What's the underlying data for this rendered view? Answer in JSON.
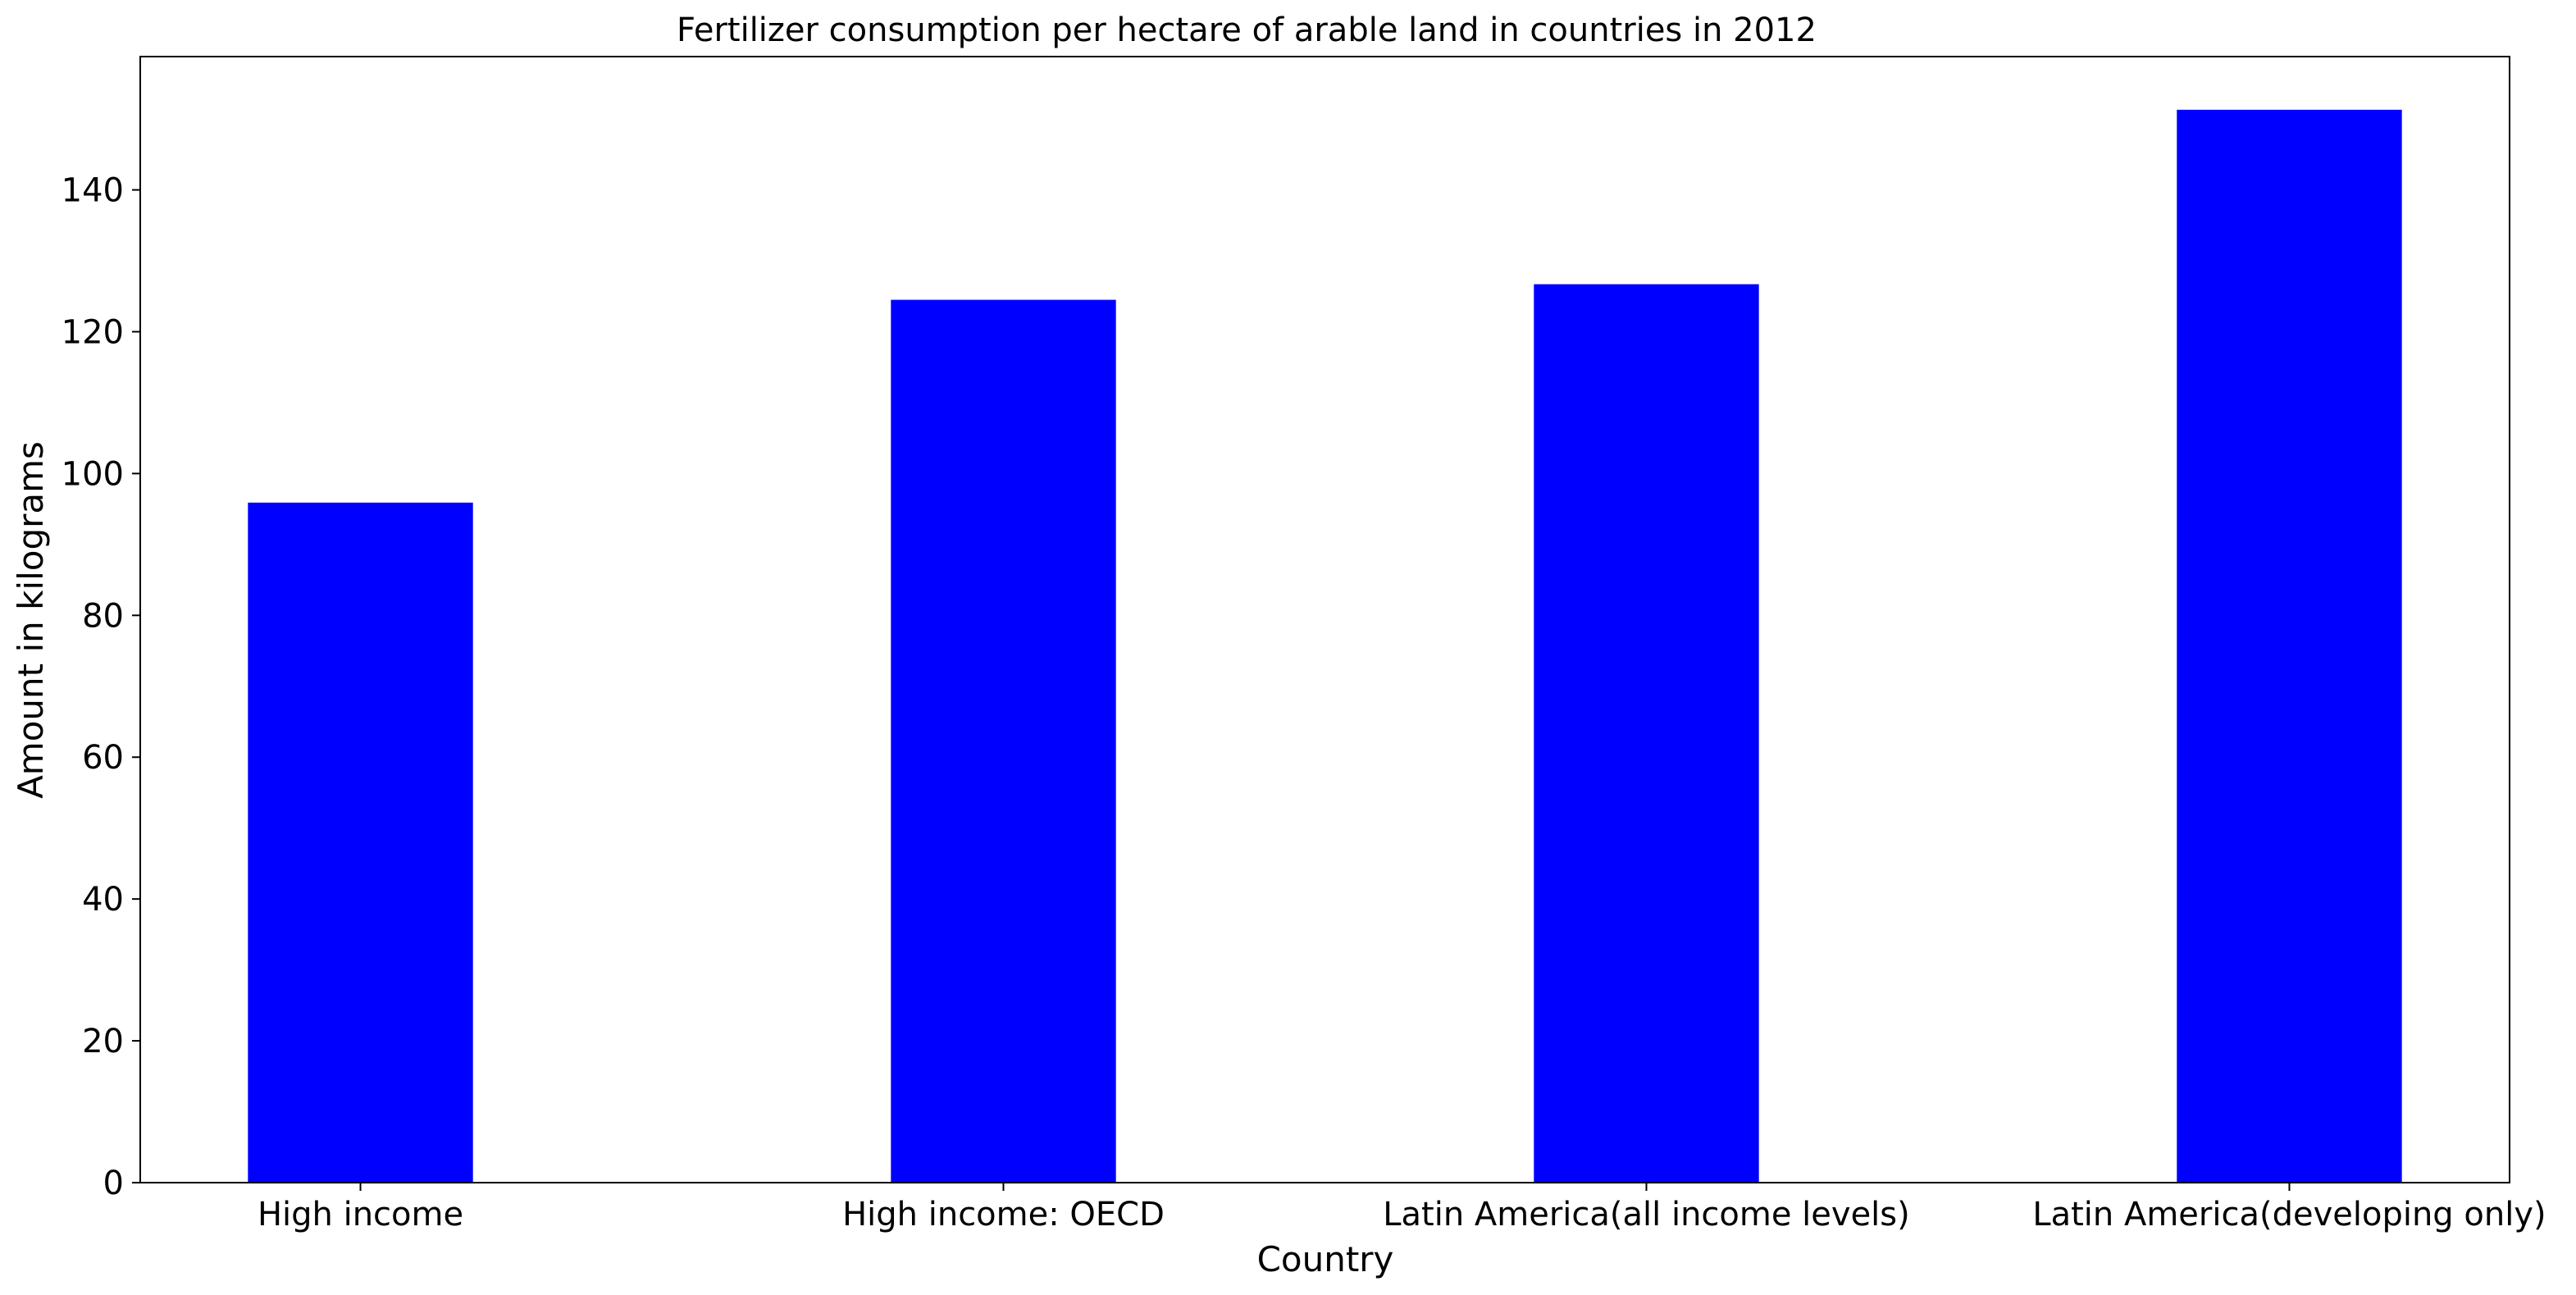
{
  "chart_data": {
    "type": "bar",
    "title": "Fertilizer consumption per hectare of arable land in countries in 2012",
    "xlabel": "Country",
    "ylabel": "Amount in kilograms",
    "categories": [
      "High income",
      "High income: OECD",
      "Latin America(all income levels)",
      "Latin America(developing only)"
    ],
    "values": [
      95.9,
      124.5,
      126.7,
      151.3
    ],
    "ylim": [
      0,
      158.8
    ],
    "yticks": [
      0,
      20,
      40,
      60,
      80,
      100,
      120,
      140
    ],
    "bar_color": "#0000ff",
    "grid": false,
    "legend": "none"
  }
}
